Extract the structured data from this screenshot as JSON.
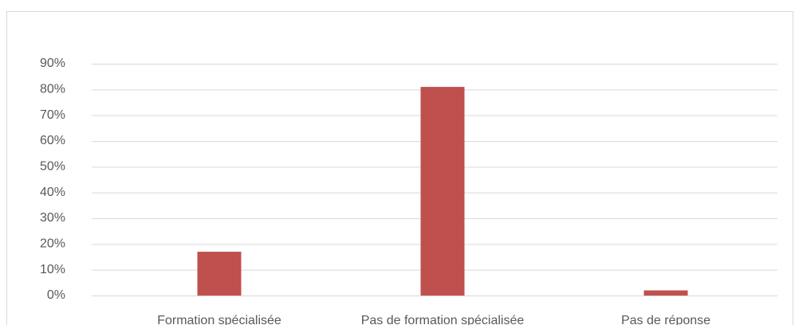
{
  "chart_data": {
    "type": "bar",
    "categories": [
      "Formation spécialisée",
      "Pas de formation spécialisée",
      "Pas de réponse"
    ],
    "values": [
      17,
      81,
      2
    ],
    "color": "#c0504d",
    "ylim": [
      0,
      90
    ],
    "yticks": [
      {
        "value": 0,
        "label": "0%"
      },
      {
        "value": 10,
        "label": "10%"
      },
      {
        "value": 20,
        "label": "20%"
      },
      {
        "value": 30,
        "label": "30%"
      },
      {
        "value": 40,
        "label": "40%"
      },
      {
        "value": 50,
        "label": "50%"
      },
      {
        "value": 60,
        "label": "60%"
      },
      {
        "value": 70,
        "label": "70%"
      },
      {
        "value": 80,
        "label": "80%"
      },
      {
        "value": 90,
        "label": "90%"
      }
    ],
    "grid": true
  }
}
